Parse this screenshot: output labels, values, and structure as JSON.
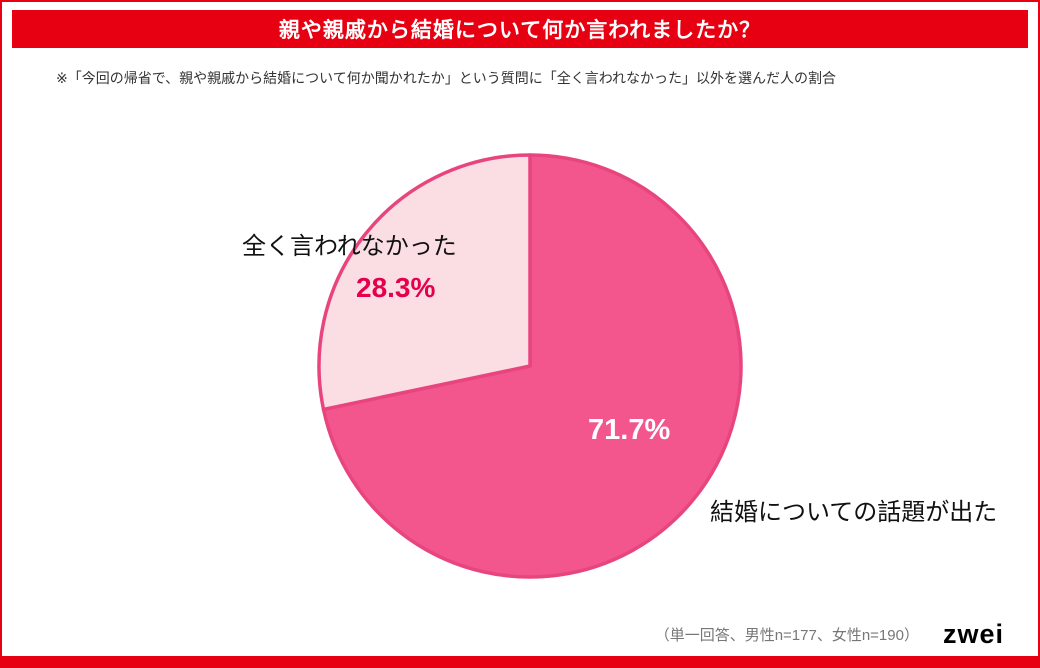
{
  "title": "親や親戚から結婚について何か言われましたか？",
  "note": "※「今回の帰省で、親や親戚から結婚について何か聞かれたか」という質問に「全く言われなかった」以外を選んだ人の割合",
  "footer": {
    "note": "（単一回答、男性n=177、女性n=190）",
    "logo": "zwei"
  },
  "colors": {
    "accent_red": "#e60012",
    "slice_main": "#f2568d",
    "slice_secondary": "#fbdee4",
    "slice_stroke": "#e8457f",
    "pct_secondary_color": "#e6004c",
    "pct_main_color": "#ffffff"
  },
  "chart_data": {
    "type": "pie",
    "title": "親や親戚から結婚について何か言われましたか？",
    "slices": [
      {
        "label": "結婚についての話題が出た",
        "value": 71.7,
        "display": "71.7%",
        "color": "#f2568d"
      },
      {
        "label": "全く言われなかった",
        "value": 28.3,
        "display": "28.3%",
        "color": "#fbdee4"
      }
    ],
    "start_angle_deg": 0,
    "direction": "clockwise",
    "legend_position": "labels-adjacent"
  }
}
